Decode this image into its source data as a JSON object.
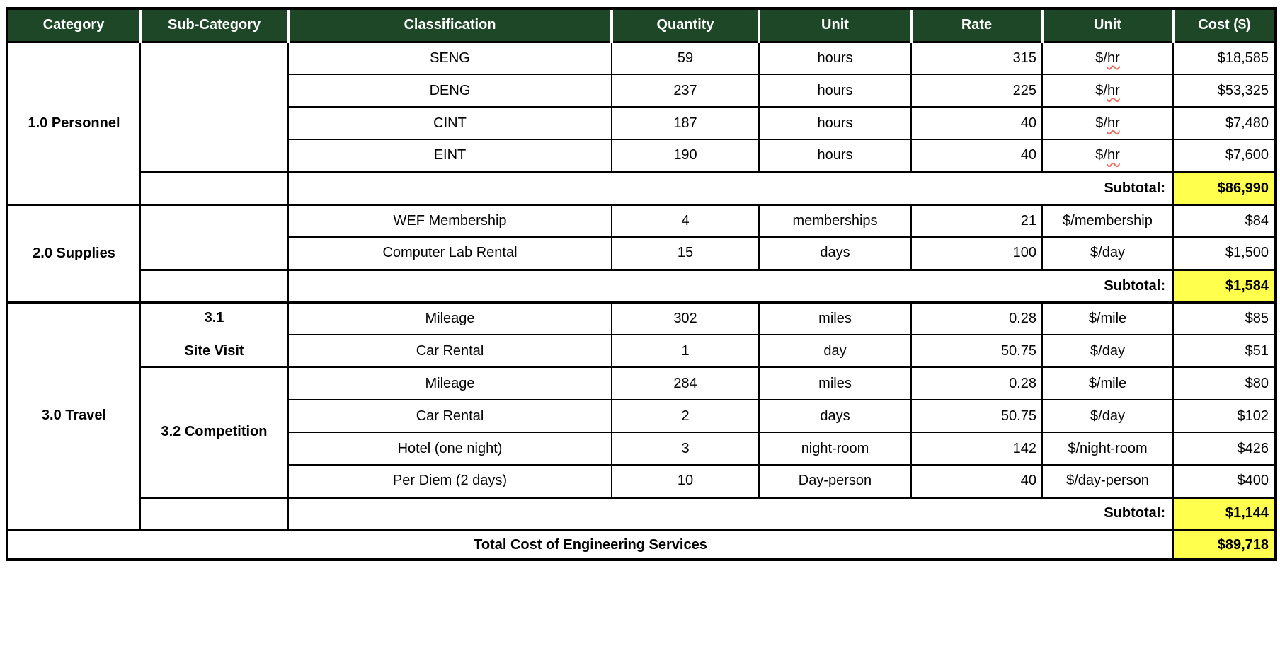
{
  "colors": {
    "header_bg": "#1e4727",
    "header_text": "#ffffff",
    "highlight": "#ffff4d",
    "squiggle": "#ef6e5e",
    "border": "#000000"
  },
  "header": {
    "columns": [
      "Category",
      "Sub-Category",
      "Classification",
      "Quantity",
      "Unit",
      "Rate",
      "Unit",
      "Cost ($)"
    ]
  },
  "sections": [
    {
      "category": "1.0 Personnel",
      "subcategories": [
        {
          "label_lines": [],
          "items": [
            {
              "classification": "SENG",
              "quantity": "59",
              "unit": "hours",
              "rate": "315",
              "rate_unit": "$/hr",
              "spellcheck": true,
              "cost": "$18,585"
            },
            {
              "classification": "DENG",
              "quantity": "237",
              "unit": "hours",
              "rate": "225",
              "rate_unit": "$/hr",
              "spellcheck": true,
              "cost": "$53,325"
            },
            {
              "classification": "CINT",
              "quantity": "187",
              "unit": "hours",
              "rate": "40",
              "rate_unit": "$/hr",
              "spellcheck": true,
              "cost": "$7,480"
            },
            {
              "classification": "EINT",
              "quantity": "190",
              "unit": "hours",
              "rate": "40",
              "rate_unit": "$/hr",
              "spellcheck": true,
              "cost": "$7,600"
            }
          ]
        }
      ],
      "subtotal_label": "Subtotal:",
      "subtotal_value": "$86,990"
    },
    {
      "category": "2.0 Supplies",
      "subcategories": [
        {
          "label_lines": [],
          "items": [
            {
              "classification": "WEF Membership",
              "quantity": "4",
              "unit": "memberships",
              "rate": "21",
              "rate_unit": "$/membership",
              "spellcheck": false,
              "cost": "$84"
            },
            {
              "classification": "Computer Lab Rental",
              "quantity": "15",
              "unit": "days",
              "rate": "100",
              "rate_unit": "$/day",
              "spellcheck": false,
              "cost": "$1,500"
            }
          ]
        }
      ],
      "subtotal_label": "Subtotal:",
      "subtotal_value": "$1,584"
    },
    {
      "category": "3.0 Travel",
      "subcategories": [
        {
          "label_lines": [
            "3.1",
            "Site Visit"
          ],
          "items": [
            {
              "classification": "Mileage",
              "quantity": "302",
              "unit": "miles",
              "rate": "0.28",
              "rate_unit": "$/mile",
              "spellcheck": false,
              "cost": "$85"
            },
            {
              "classification": "Car Rental",
              "quantity": "1",
              "unit": "day",
              "rate": "50.75",
              "rate_unit": "$/day",
              "spellcheck": false,
              "cost": "$51"
            }
          ]
        },
        {
          "label_lines": [
            "3.2 Competition"
          ],
          "items": [
            {
              "classification": "Mileage",
              "quantity": "284",
              "unit": "miles",
              "rate": "0.28",
              "rate_unit": "$/mile",
              "spellcheck": false,
              "cost": "$80"
            },
            {
              "classification": "Car Rental",
              "quantity": "2",
              "unit": "days",
              "rate": "50.75",
              "rate_unit": "$/day",
              "spellcheck": false,
              "cost": "$102"
            },
            {
              "classification": "Hotel (one night)",
              "quantity": "3",
              "unit": "night-room",
              "rate": "142",
              "rate_unit": "$/night-room",
              "spellcheck": false,
              "cost": "$426"
            },
            {
              "classification": "Per Diem (2 days)",
              "quantity": "10",
              "unit": "Day-person",
              "rate": "40",
              "rate_unit": "$/day-person",
              "spellcheck": false,
              "cost": "$400"
            }
          ]
        }
      ],
      "subtotal_label": "Subtotal:",
      "subtotal_value": "$1,144"
    }
  ],
  "total": {
    "label": "Total Cost of Engineering Services",
    "value": "$89,718"
  }
}
